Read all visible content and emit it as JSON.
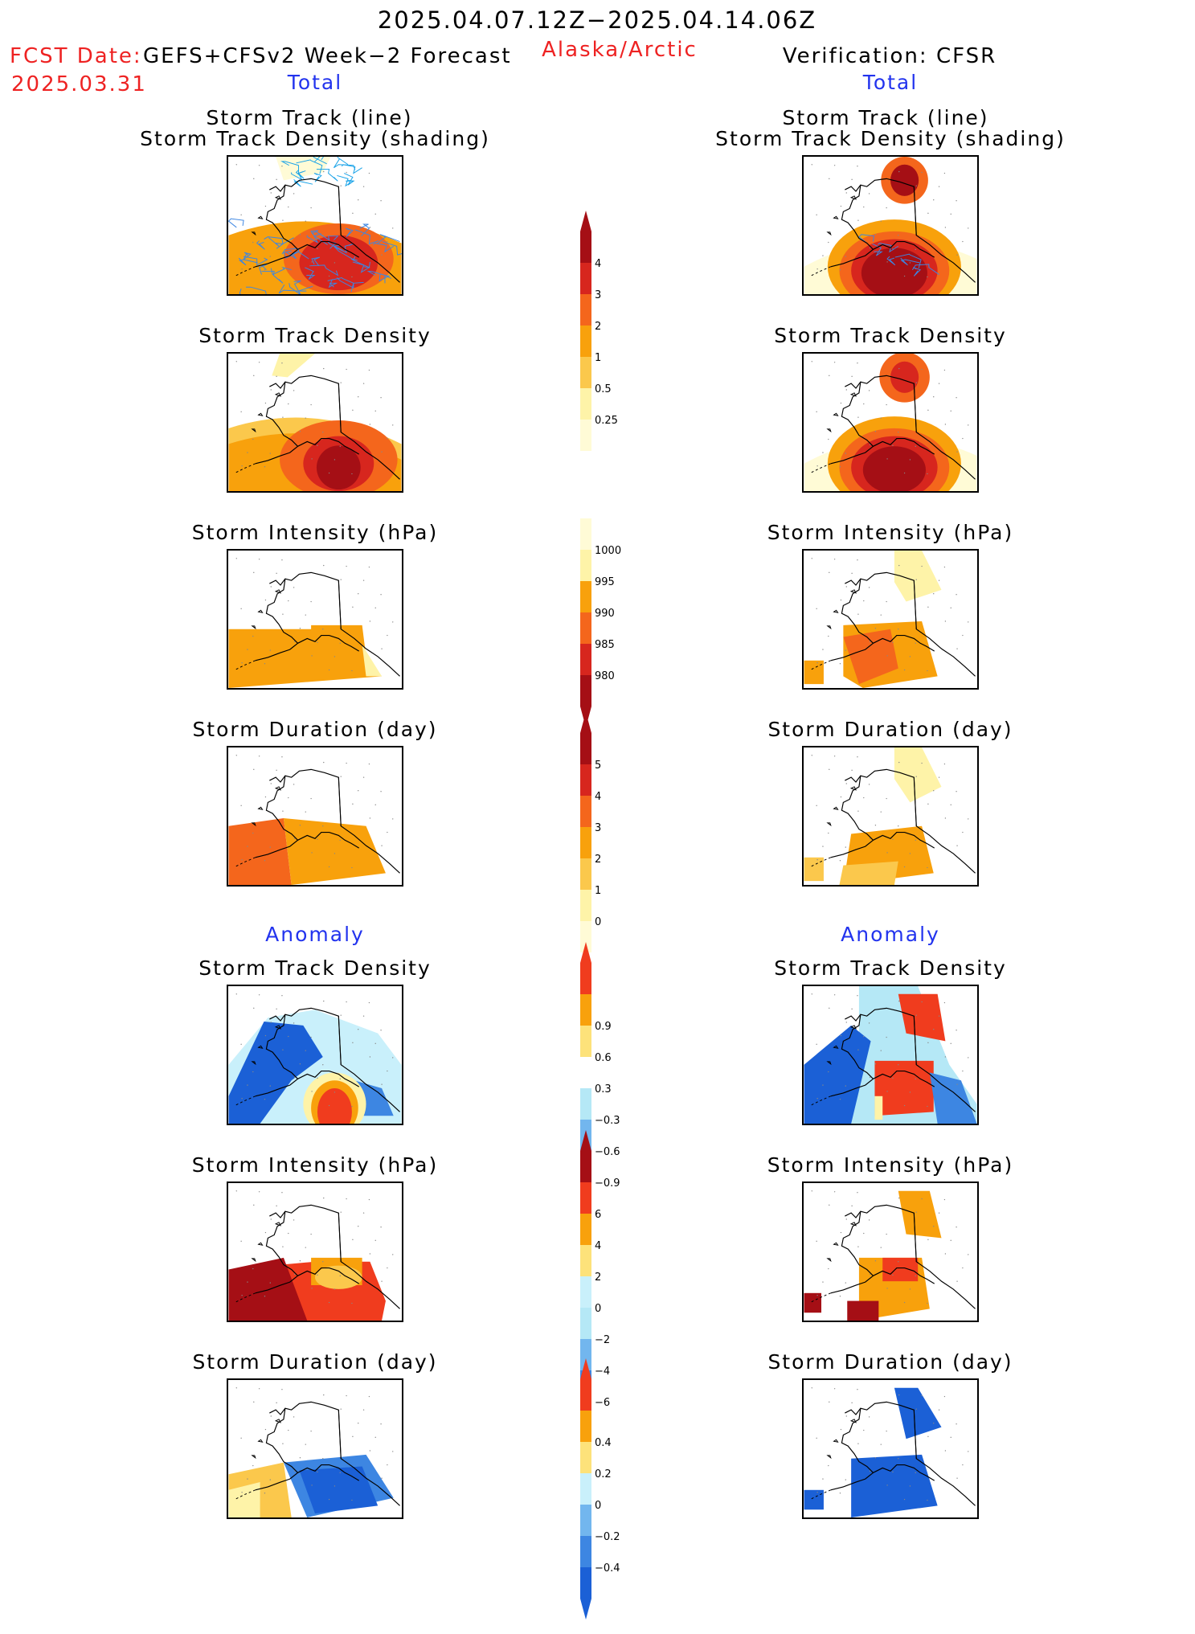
{
  "header": {
    "period": "2025.04.07.12Z−2025.04.14.06Z",
    "fcst_label": "FCST Date:",
    "model": "GEFS+CFSv2 Week−2 Forecast",
    "fcst_date": "2025.03.31",
    "region": "Alaska/Arctic",
    "verification": "Verification: CFSR"
  },
  "columns": {
    "left": {
      "total_label": "Total",
      "anomaly_label": "Anomaly"
    },
    "right": {
      "total_label": "Total",
      "anomaly_label": "Anomaly"
    }
  },
  "panel_titles": {
    "track_line": "Storm Track (line)",
    "track_shading": "Storm Track Density (shading)",
    "density": "Storm Track Density",
    "intensity": "Storm Intensity (hPa)",
    "duration": "Storm Duration (day)"
  },
  "panel_icons": [
    "alaska-map-icon"
  ],
  "colorbars": [
    {
      "name": "track-density",
      "labels": [
        "4",
        "3",
        "2",
        "1",
        "0.5",
        "0.25"
      ],
      "colors": [
        "#a50f15",
        "#d7261e",
        "#f4661c",
        "#f8a10c",
        "#fbc84c",
        "#fef3a8",
        "#fffbd6"
      ],
      "arrows": "top"
    },
    {
      "name": "intensity",
      "labels": [
        "1000",
        "995",
        "990",
        "985",
        "980"
      ],
      "colors": [
        "#fffbd6",
        "#fef3a8",
        "#f8a10c",
        "#f4661c",
        "#d7261e",
        "#a50f15"
      ],
      "arrows": "bottom"
    },
    {
      "name": "duration",
      "labels": [
        "5",
        "4",
        "3",
        "2",
        "1",
        "0"
      ],
      "colors": [
        "#a50f15",
        "#d7261e",
        "#f4661c",
        "#f8a10c",
        "#fbc84c",
        "#fef3a8",
        "#fffbd6"
      ],
      "arrows": "top"
    },
    {
      "name": "density-anomaly",
      "labels": [
        "0.9",
        "0.6",
        "0.3",
        "−0.3",
        "−0.6",
        "−0.9"
      ],
      "colors": [
        "#f03c1e",
        "#f8a10c",
        "#fde27a",
        "#ffffff",
        "#b5e8f6",
        "#72b6ee",
        "#3d86e2",
        "#1b60d6"
      ],
      "arrows": "both"
    },
    {
      "name": "intensity-anomaly",
      "labels": [
        "6",
        "4",
        "2",
        "0",
        "−2",
        "−4",
        "−6"
      ],
      "colors": [
        "#a50f15",
        "#f03c1e",
        "#f8a10c",
        "#fde27a",
        "#c9f0fb",
        "#b5e8f6",
        "#72b6ee",
        "#3d86e2",
        "#1b60d6"
      ],
      "arrows": "both"
    },
    {
      "name": "duration-anomaly",
      "labels": [
        "0.4",
        "0.2",
        "0",
        "−0.2",
        "−0.4"
      ],
      "colors": [
        "#f03c1e",
        "#f8a10c",
        "#fde27a",
        "#c9f0fb",
        "#72b6ee",
        "#3d86e2",
        "#1b60d6"
      ],
      "arrows": "both"
    }
  ]
}
